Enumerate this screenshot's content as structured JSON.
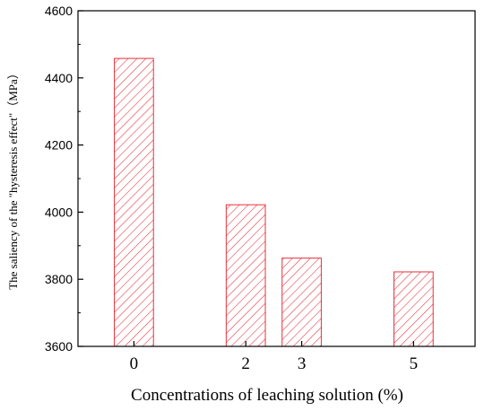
{
  "chart_data": {
    "type": "bar",
    "x": [
      0,
      2,
      3,
      5
    ],
    "categories": [
      "0",
      "2",
      "3",
      "5"
    ],
    "values": [
      4458,
      4022,
      3863,
      3822
    ],
    "xlabel": "Concentrations of leaching solution (%)",
    "ylabel": "The saliency of the \"hysteresis effect\"（MPa）",
    "ylim": [
      3600,
      4600
    ],
    "yticks": [
      3600,
      3800,
      4000,
      4200,
      4400,
      4600
    ],
    "ytick_labels": [
      "3600",
      "3800",
      "4000",
      "4200",
      "4400",
      "4600"
    ],
    "grid": false,
    "legend": "none",
    "bar_style": "hatched",
    "colors": {
      "bar": "#e8303a",
      "axis": "#000000"
    }
  }
}
